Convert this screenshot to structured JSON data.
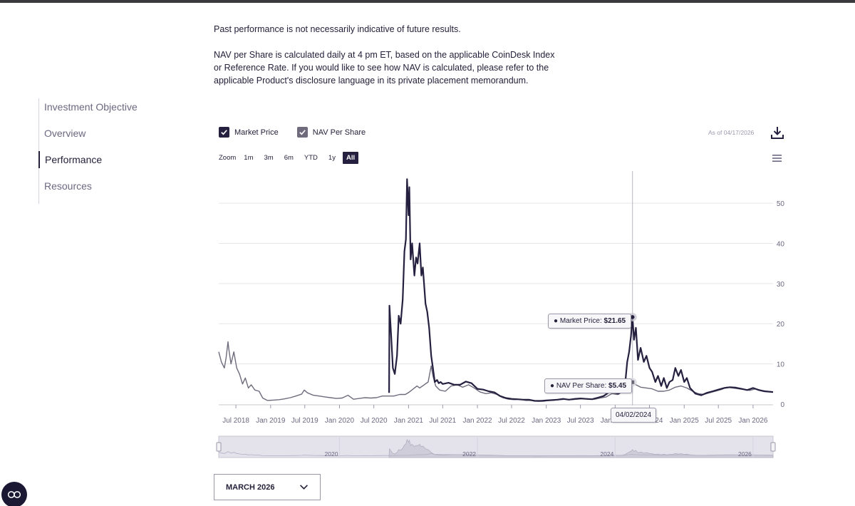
{
  "disclaimer": {
    "line1": "Past performance is not necessarily indicative of future results.",
    "line2": "NAV per Share is calculated daily at 4 pm ET, based on the applicable CoinDesk Index or Reference Rate. If you would like to see how NAV is calculated, please refer to the applicable Product's disclosure language in its private placement memorandum."
  },
  "sidenav": {
    "items": [
      {
        "label": "Investment Objective",
        "active": false
      },
      {
        "label": "Overview",
        "active": false
      },
      {
        "label": "Performance",
        "active": true
      },
      {
        "label": "Resources",
        "active": false
      }
    ]
  },
  "legend": {
    "market_price": "Market Price",
    "nav_per_share": "NAV Per Share"
  },
  "as_of": "As of 04/17/2026",
  "zoom": {
    "label": "Zoom",
    "options": [
      "1m",
      "3m",
      "6m",
      "YTD",
      "1y",
      "All"
    ],
    "selected": "All"
  },
  "tooltips": {
    "market_price_label": "Market Price:",
    "market_price_value": "$21.65",
    "nav_label": "NAV Per Share:",
    "nav_value": "$5.45",
    "date": "04/02/2024"
  },
  "month_select": {
    "value": "MARCH 2026"
  },
  "colors": {
    "market_price": "#25203f",
    "nav_per_share": "#6f6b7d",
    "accent": "#25203f",
    "grid": "#e6e6ea"
  },
  "icons": {
    "download": "download-icon",
    "menu": "hamburger-menu-icon",
    "chevron": "chevron-down-icon",
    "cookie": "cookie-consent-icon"
  },
  "chart_data": {
    "type": "line",
    "title": "",
    "xlabel": "",
    "ylabel": "",
    "ylim": [
      0,
      58
    ],
    "yticks": [
      0,
      10,
      20,
      30,
      40,
      50
    ],
    "xticks": [
      "Jul 2018",
      "Jan 2019",
      "Jul 2019",
      "Jan 2020",
      "Jul 2020",
      "Jan 2021",
      "Jul 2021",
      "Jan 2022",
      "Jul 2022",
      "Jan 2023",
      "Jul 2023",
      "Jan 2024",
      "Jul 2024",
      "Jan 2025",
      "Jul 2025",
      "Jan 2026"
    ],
    "xlim": [
      "2018-04-01",
      "2026-04-17"
    ],
    "grid": true,
    "legend_position": "top-left",
    "crosshair_date": "2024-04-02",
    "navigator_labels": [
      "2020",
      "2022",
      "2024",
      "2026"
    ],
    "series": [
      {
        "name": "Market Price",
        "points": [
          [
            "2020-09-20",
            2.8
          ],
          [
            "2020-09-22",
            24.5
          ],
          [
            "2020-10-01",
            17.0
          ],
          [
            "2020-10-10",
            9.0
          ],
          [
            "2020-10-20",
            7.5
          ],
          [
            "2020-11-01",
            12.0
          ],
          [
            "2020-11-10",
            22.0
          ],
          [
            "2020-11-20",
            20.0
          ],
          [
            "2020-12-01",
            26.0
          ],
          [
            "2020-12-10",
            38.0
          ],
          [
            "2020-12-18",
            41.0
          ],
          [
            "2020-12-24",
            56.0
          ],
          [
            "2021-01-01",
            47.0
          ],
          [
            "2021-01-05",
            54.0
          ],
          [
            "2021-01-12",
            36.0
          ],
          [
            "2021-01-20",
            40.0
          ],
          [
            "2021-02-01",
            32.0
          ],
          [
            "2021-02-10",
            36.5
          ],
          [
            "2021-02-18",
            35.0
          ],
          [
            "2021-03-01",
            40.0
          ],
          [
            "2021-03-10",
            32.0
          ],
          [
            "2021-03-18",
            34.0
          ],
          [
            "2021-04-01",
            25.0
          ],
          [
            "2021-04-10",
            23.0
          ],
          [
            "2021-04-20",
            19.0
          ],
          [
            "2021-05-01",
            12.0
          ],
          [
            "2021-05-10",
            9.0
          ],
          [
            "2021-05-20",
            5.5
          ],
          [
            "2021-06-01",
            6.0
          ],
          [
            "2021-06-10",
            5.2
          ],
          [
            "2021-06-20",
            5.5
          ],
          [
            "2021-07-01",
            5.0
          ],
          [
            "2021-08-01",
            5.3
          ],
          [
            "2021-09-01",
            4.8
          ],
          [
            "2021-10-01",
            4.8
          ],
          [
            "2021-11-01",
            5.6
          ],
          [
            "2021-12-01",
            5.2
          ],
          [
            "2022-01-01",
            3.8
          ],
          [
            "2022-02-01",
            3.6
          ],
          [
            "2022-03-01",
            3.2
          ],
          [
            "2022-04-01",
            2.9
          ],
          [
            "2022-05-01",
            2.0
          ],
          [
            "2022-06-01",
            1.5
          ],
          [
            "2022-07-01",
            1.3
          ],
          [
            "2022-08-01",
            1.2
          ],
          [
            "2022-09-01",
            1.1
          ],
          [
            "2022-10-01",
            1.1
          ],
          [
            "2022-11-01",
            0.8
          ],
          [
            "2022-12-01",
            0.8
          ],
          [
            "2023-01-01",
            0.9
          ],
          [
            "2023-02-01",
            1.0
          ],
          [
            "2023-03-01",
            1.1
          ],
          [
            "2023-04-01",
            1.3
          ],
          [
            "2023-05-01",
            1.1
          ],
          [
            "2023-06-01",
            1.3
          ],
          [
            "2023-07-01",
            1.4
          ],
          [
            "2023-08-01",
            1.3
          ],
          [
            "2023-09-01",
            1.2
          ],
          [
            "2023-10-01",
            1.6
          ],
          [
            "2023-11-01",
            2.0
          ],
          [
            "2023-12-01",
            3.0
          ],
          [
            "2024-01-01",
            2.8
          ],
          [
            "2024-01-20",
            2.6
          ],
          [
            "2024-02-10",
            3.5
          ],
          [
            "2024-02-25",
            6.0
          ],
          [
            "2024-03-05",
            10.5
          ],
          [
            "2024-03-15",
            13.0
          ],
          [
            "2024-03-25",
            17.0
          ],
          [
            "2024-04-02",
            21.65
          ],
          [
            "2024-04-10",
            16.0
          ],
          [
            "2024-04-20",
            19.0
          ],
          [
            "2024-05-01",
            11.0
          ],
          [
            "2024-05-15",
            14.0
          ],
          [
            "2024-06-01",
            10.5
          ],
          [
            "2024-06-15",
            12.0
          ],
          [
            "2024-07-01",
            9.0
          ],
          [
            "2024-07-15",
            8.0
          ],
          [
            "2024-08-01",
            5.5
          ],
          [
            "2024-08-15",
            7.0
          ],
          [
            "2024-09-01",
            4.5
          ],
          [
            "2024-09-15",
            6.5
          ],
          [
            "2024-10-01",
            4.0
          ],
          [
            "2024-10-15",
            5.5
          ],
          [
            "2024-11-01",
            6.0
          ],
          [
            "2024-11-15",
            9.0
          ],
          [
            "2024-12-01",
            7.0
          ],
          [
            "2024-12-15",
            8.5
          ],
          [
            "2025-01-01",
            5.5
          ],
          [
            "2025-01-15",
            6.5
          ],
          [
            "2025-02-01",
            4.0
          ],
          [
            "2025-03-01",
            2.6
          ],
          [
            "2025-04-01",
            2.2
          ],
          [
            "2025-05-01",
            2.8
          ],
          [
            "2025-06-01",
            3.2
          ],
          [
            "2025-07-01",
            3.6
          ],
          [
            "2025-08-01",
            4.0
          ],
          [
            "2025-09-01",
            4.2
          ],
          [
            "2025-10-01",
            4.1
          ],
          [
            "2025-11-01",
            3.8
          ],
          [
            "2025-12-01",
            3.5
          ],
          [
            "2026-01-01",
            4.0
          ],
          [
            "2026-02-01",
            3.5
          ],
          [
            "2026-03-01",
            3.2
          ],
          [
            "2026-04-17",
            3.0
          ]
        ]
      },
      {
        "name": "NAV Per Share",
        "points": [
          [
            "2018-04-01",
            13.0
          ],
          [
            "2018-04-15",
            10.5
          ],
          [
            "2018-05-01",
            9.0
          ],
          [
            "2018-05-10",
            11.5
          ],
          [
            "2018-05-20",
            15.5
          ],
          [
            "2018-05-25",
            13.5
          ],
          [
            "2018-06-05",
            10.0
          ],
          [
            "2018-06-20",
            13.0
          ],
          [
            "2018-07-05",
            9.0
          ],
          [
            "2018-07-20",
            7.5
          ],
          [
            "2018-08-05",
            5.0
          ],
          [
            "2018-08-20",
            6.5
          ],
          [
            "2018-09-05",
            4.0
          ],
          [
            "2018-09-20",
            4.8
          ],
          [
            "2018-10-10",
            3.5
          ],
          [
            "2018-11-01",
            3.2
          ],
          [
            "2018-11-20",
            1.5
          ],
          [
            "2018-12-15",
            0.9
          ],
          [
            "2019-01-15",
            1.0
          ],
          [
            "2019-02-15",
            1.1
          ],
          [
            "2019-03-15",
            1.3
          ],
          [
            "2019-04-15",
            1.6
          ],
          [
            "2019-05-15",
            2.0
          ],
          [
            "2019-06-15",
            2.5
          ],
          [
            "2019-06-28",
            3.5
          ],
          [
            "2019-07-15",
            2.8
          ],
          [
            "2019-08-15",
            2.2
          ],
          [
            "2019-09-15",
            2.0
          ],
          [
            "2019-10-15",
            1.8
          ],
          [
            "2019-11-15",
            1.6
          ],
          [
            "2019-12-15",
            1.4
          ],
          [
            "2020-01-15",
            1.5
          ],
          [
            "2020-02-15",
            2.2
          ],
          [
            "2020-03-15",
            1.2
          ],
          [
            "2020-04-15",
            1.4
          ],
          [
            "2020-05-15",
            1.6
          ],
          [
            "2020-06-15",
            1.5
          ],
          [
            "2020-07-15",
            1.6
          ],
          [
            "2020-08-15",
            2.0
          ],
          [
            "2020-09-15",
            2.0
          ],
          [
            "2020-10-15",
            2.0
          ],
          [
            "2020-11-15",
            2.4
          ],
          [
            "2020-12-15",
            2.4
          ],
          [
            "2021-01-05",
            3.0
          ],
          [
            "2021-02-15",
            4.5
          ],
          [
            "2021-03-01",
            4.0
          ],
          [
            "2021-04-15",
            5.5
          ],
          [
            "2021-05-01",
            9.5
          ],
          [
            "2021-05-10",
            7.0
          ],
          [
            "2021-05-25",
            4.5
          ],
          [
            "2021-06-15",
            3.5
          ],
          [
            "2021-07-15",
            3.2
          ],
          [
            "2021-08-15",
            4.5
          ],
          [
            "2021-09-15",
            4.8
          ],
          [
            "2021-10-15",
            4.2
          ],
          [
            "2021-11-15",
            4.8
          ],
          [
            "2021-12-15",
            4.0
          ],
          [
            "2022-01-15",
            3.0
          ],
          [
            "2022-02-15",
            2.6
          ],
          [
            "2022-03-15",
            2.8
          ],
          [
            "2022-04-15",
            2.4
          ],
          [
            "2022-05-15",
            1.6
          ],
          [
            "2022-06-15",
            1.2
          ],
          [
            "2022-07-15",
            1.1
          ],
          [
            "2022-08-15",
            1.2
          ],
          [
            "2022-09-15",
            0.9
          ],
          [
            "2022-10-15",
            0.9
          ],
          [
            "2022-11-15",
            0.7
          ],
          [
            "2022-12-15",
            0.7
          ],
          [
            "2023-01-15",
            0.9
          ],
          [
            "2023-02-15",
            1.0
          ],
          [
            "2023-03-15",
            1.1
          ],
          [
            "2023-04-15",
            1.2
          ],
          [
            "2023-05-15",
            1.1
          ],
          [
            "2023-06-15",
            1.2
          ],
          [
            "2023-07-15",
            1.4
          ],
          [
            "2023-08-15",
            1.2
          ],
          [
            "2023-09-15",
            1.2
          ],
          [
            "2023-10-15",
            1.5
          ],
          [
            "2023-11-15",
            1.8
          ],
          [
            "2023-12-15",
            2.6
          ],
          [
            "2024-01-15",
            2.4
          ],
          [
            "2024-02-15",
            3.2
          ],
          [
            "2024-03-15",
            4.8
          ],
          [
            "2024-04-02",
            5.45
          ],
          [
            "2024-04-20",
            4.8
          ],
          [
            "2024-05-15",
            4.2
          ],
          [
            "2024-06-15",
            4.0
          ],
          [
            "2024-07-15",
            3.8
          ],
          [
            "2024-08-15",
            3.2
          ],
          [
            "2024-09-15",
            3.2
          ],
          [
            "2024-10-15",
            3.5
          ],
          [
            "2024-11-15",
            4.2
          ],
          [
            "2024-12-15",
            4.5
          ],
          [
            "2025-01-15",
            4.0
          ],
          [
            "2025-02-15",
            3.2
          ],
          [
            "2025-03-15",
            2.6
          ],
          [
            "2025-04-15",
            2.4
          ],
          [
            "2025-05-15",
            2.8
          ],
          [
            "2025-06-15",
            3.2
          ],
          [
            "2025-07-15",
            3.6
          ],
          [
            "2025-08-15",
            4.2
          ],
          [
            "2025-09-15",
            4.0
          ],
          [
            "2025-10-15",
            3.8
          ],
          [
            "2025-11-15",
            3.6
          ],
          [
            "2025-12-15",
            3.4
          ],
          [
            "2026-01-15",
            3.8
          ],
          [
            "2026-02-15",
            3.4
          ],
          [
            "2026-03-15",
            3.2
          ],
          [
            "2026-04-17",
            3.0
          ]
        ]
      }
    ]
  }
}
